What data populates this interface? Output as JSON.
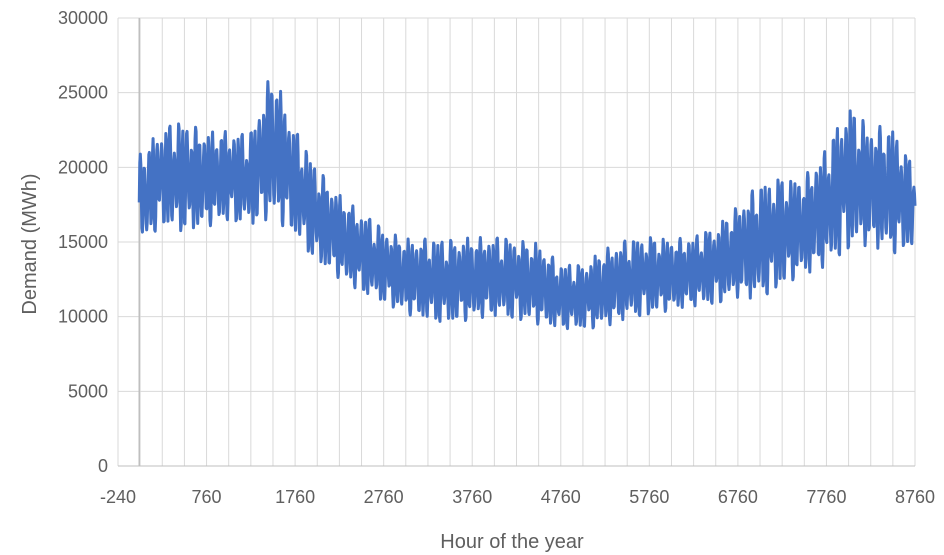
{
  "chart_data": {
    "type": "line",
    "title": "",
    "xlabel": "Hour of the year",
    "ylabel": "Demand (MWh)",
    "xlim": [
      -240,
      8760
    ],
    "ylim": [
      0,
      30000
    ],
    "x_ticks": [
      -240,
      760,
      1760,
      2760,
      3760,
      4760,
      5760,
      6760,
      7760,
      8760
    ],
    "x_tick_labels": [
      "-240",
      "760",
      "1760",
      "2760",
      "3760",
      "4760",
      "5760",
      "6760",
      "7760",
      "8760"
    ],
    "y_ticks": [
      0,
      5000,
      10000,
      15000,
      20000,
      25000,
      30000
    ],
    "y_tick_labels": [
      "0",
      "5000",
      "10000",
      "15000",
      "20000",
      "25000",
      "30000"
    ],
    "grid": true,
    "legend": "none",
    "series_color": "#4472C4",
    "series": [
      {
        "name": "",
        "x": [
          0,
          250,
          500,
          760,
          1000,
          1250,
          1500,
          1760,
          2000,
          2250,
          2500,
          2760,
          3000,
          3250,
          3500,
          3760,
          4000,
          4250,
          4500,
          4760,
          5000,
          5250,
          5500,
          5760,
          6000,
          6250,
          6500,
          6760,
          7000,
          7250,
          7500,
          7760,
          8000,
          8250,
          8500,
          8760
        ],
        "min": [
          14500,
          16200,
          15700,
          16000,
          16500,
          16200,
          16600,
          15500,
          13700,
          12600,
          11700,
          11000,
          10200,
          9800,
          9600,
          9800,
          10100,
          9900,
          9500,
          9200,
          9200,
          9300,
          9900,
          10200,
          10400,
          10700,
          10900,
          11300,
          11200,
          12100,
          12800,
          13400,
          14600,
          14800,
          14200,
          14800
        ],
        "max": [
          20800,
          22600,
          23000,
          22400,
          22400,
          22100,
          26600,
          22500,
          20000,
          18200,
          17000,
          15800,
          15200,
          15200,
          15100,
          15300,
          15300,
          15100,
          14900,
          13500,
          13400,
          14500,
          15100,
          15300,
          15200,
          15300,
          15900,
          17400,
          18900,
          19200,
          19300,
          21200,
          24100,
          22700,
          22800,
          19700
        ]
      }
    ]
  }
}
